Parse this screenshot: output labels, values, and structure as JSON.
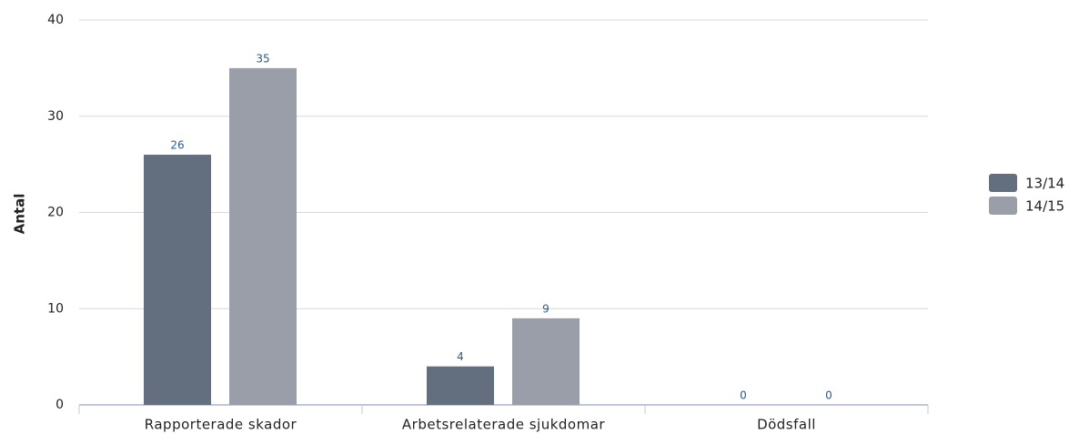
{
  "chart_data": {
    "type": "bar",
    "y_label": "Antal",
    "categories": [
      "Rapporterade skador",
      "Arbetsrelaterade sjukdomar",
      "Dödsfall"
    ],
    "series": [
      {
        "name": "13/14",
        "color": "#636e7e",
        "values": [
          26,
          4,
          0
        ]
      },
      {
        "name": "14/15",
        "color": "#9a9ea9",
        "values": [
          35,
          9,
          0
        ]
      }
    ],
    "ylim": [
      0,
      40
    ],
    "yticks": [
      0,
      10,
      20,
      30,
      40
    ],
    "grid": true,
    "legend": "right"
  }
}
